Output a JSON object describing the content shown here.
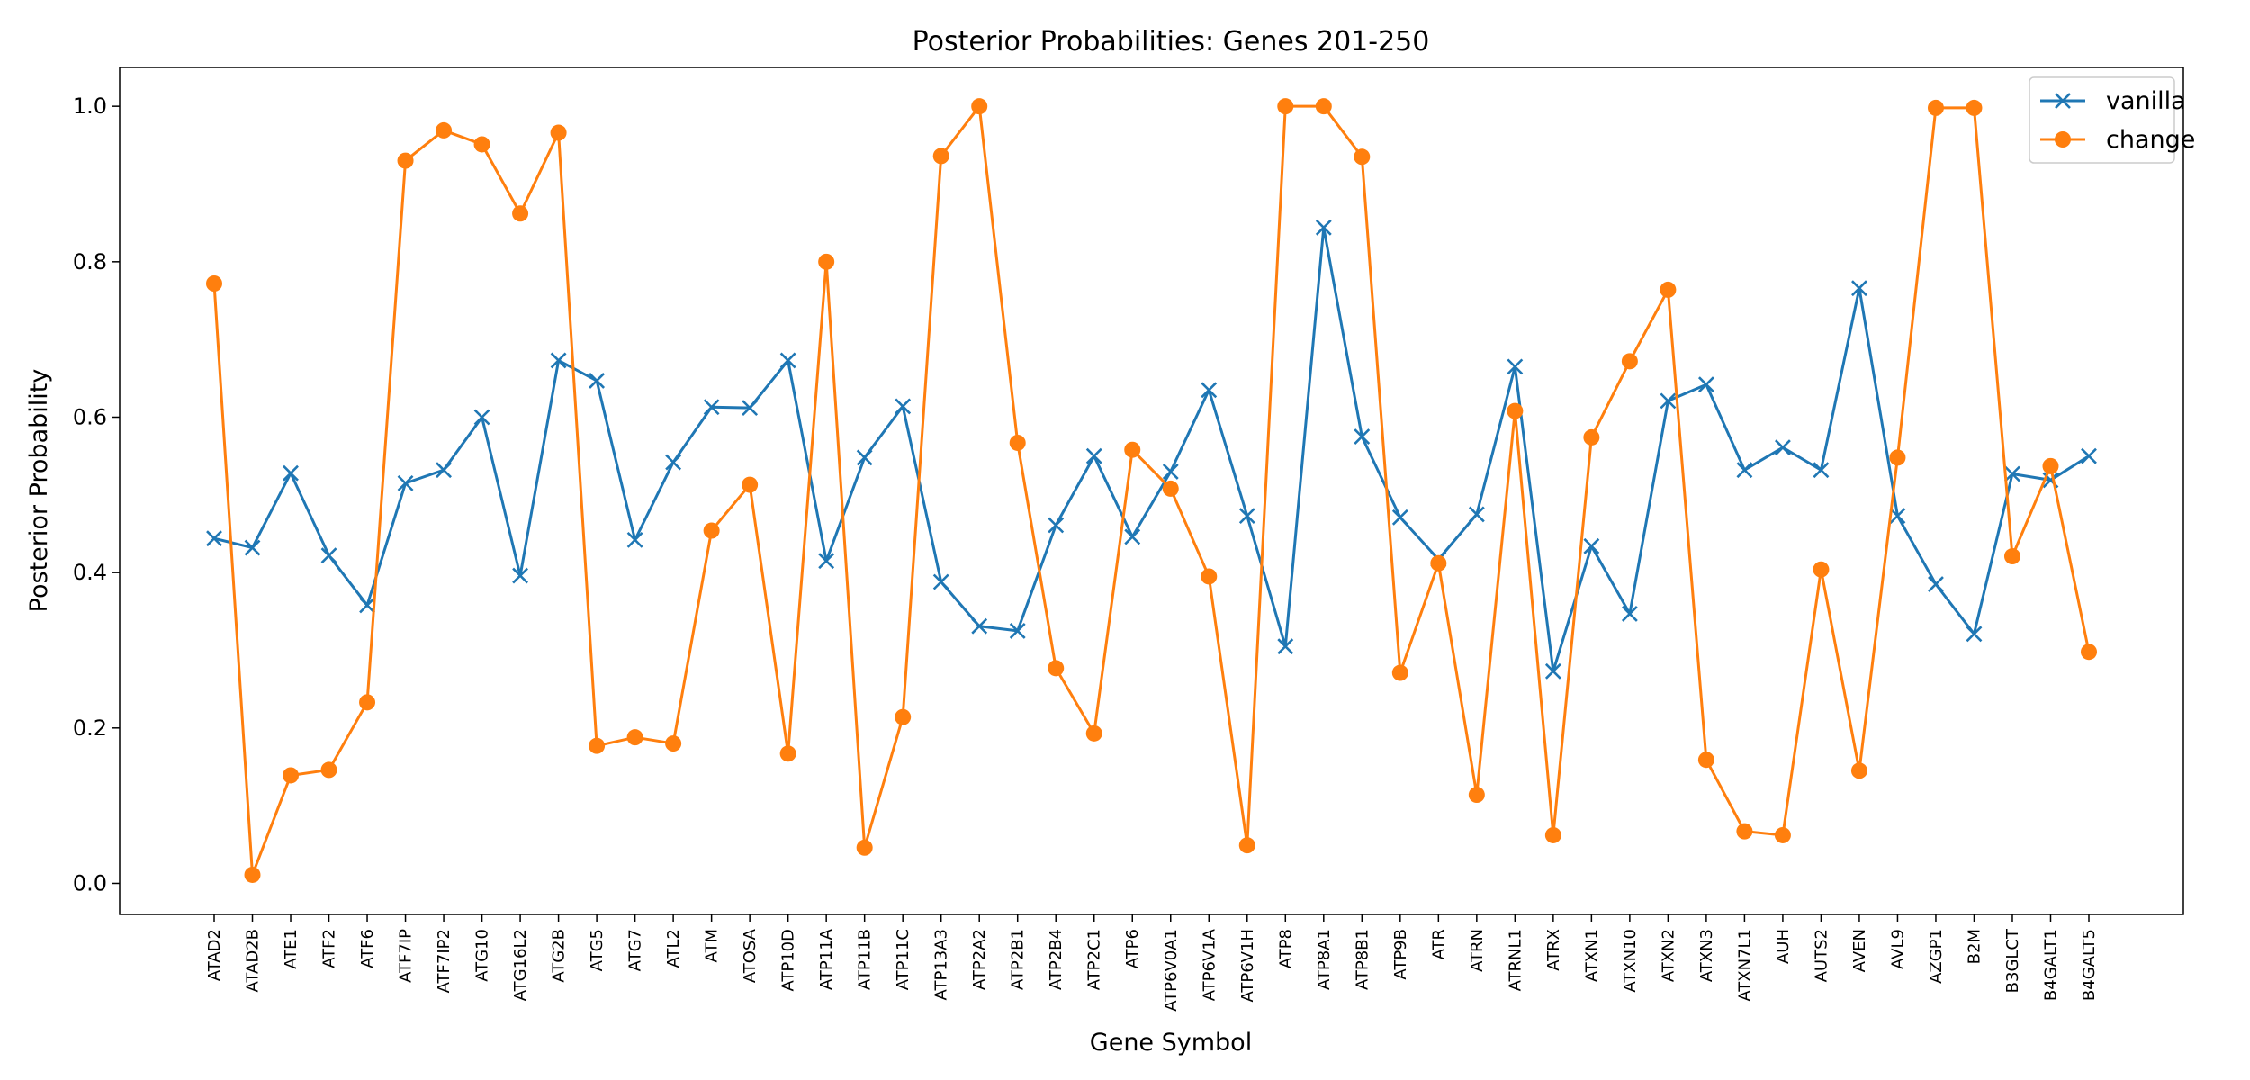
{
  "chart_data": {
    "type": "line",
    "title": "Posterior Probabilities: Genes 201-250",
    "xlabel": "Gene Symbol",
    "ylabel": "Posterior Probability",
    "ylim": [
      -0.04,
      1.05
    ],
    "yticks": [
      "0.0",
      "0.2",
      "0.4",
      "0.6",
      "0.8",
      "1.0"
    ],
    "grid": false,
    "legend_position": "top-right",
    "categories": [
      "ATAD2",
      "ATAD2B",
      "ATE1",
      "ATF2",
      "ATF6",
      "ATF7IP",
      "ATF7IP2",
      "ATG10",
      "ATG16L2",
      "ATG2B",
      "ATG5",
      "ATG7",
      "ATL2",
      "ATM",
      "ATOSA",
      "ATP10D",
      "ATP11A",
      "ATP11B",
      "ATP11C",
      "ATP13A3",
      "ATP2A2",
      "ATP2B1",
      "ATP2B4",
      "ATP2C1",
      "ATP6",
      "ATP6V0A1",
      "ATP6V1A",
      "ATP6V1H",
      "ATP8",
      "ATP8A1",
      "ATP8B1",
      "ATP9B",
      "ATR",
      "ATRN",
      "ATRNL1",
      "ATRX",
      "ATXN1",
      "ATXN10",
      "ATXN2",
      "ATXN3",
      "ATXN7L1",
      "AUH",
      "AUTS2",
      "AVEN",
      "AVL9",
      "AZGP1",
      "B2M",
      "B3GLCT",
      "B4GALT1",
      "B4GALT5"
    ],
    "series": [
      {
        "name": "vanilla",
        "color": "#1f77b4",
        "marker": "x",
        "values": [
          0.444,
          0.432,
          0.528,
          0.422,
          0.358,
          0.515,
          0.532,
          0.6,
          0.396,
          0.673,
          0.647,
          0.442,
          0.542,
          0.613,
          0.612,
          0.673,
          0.415,
          0.548,
          0.614,
          0.388,
          0.331,
          0.325,
          0.461,
          0.55,
          0.446,
          0.53,
          0.635,
          0.473,
          0.305,
          0.844,
          0.575,
          0.471,
          0.417,
          0.475,
          0.665,
          0.273,
          0.434,
          0.347,
          0.621,
          0.642,
          0.532,
          0.561,
          0.532,
          0.766,
          0.473,
          0.385,
          0.321,
          0.527,
          0.519,
          0.55
        ]
      },
      {
        "name": "change",
        "color": "#ff7f0e",
        "marker": "circle",
        "values": [
          0.772,
          0.011,
          0.139,
          0.146,
          0.233,
          0.93,
          0.969,
          0.951,
          0.862,
          0.966,
          0.177,
          0.188,
          0.18,
          0.454,
          0.513,
          0.167,
          0.8,
          0.046,
          0.214,
          0.936,
          1.0,
          0.567,
          0.277,
          0.193,
          0.558,
          0.508,
          0.395,
          0.049,
          1.0,
          1.0,
          0.935,
          0.271,
          0.412,
          0.114,
          0.608,
          0.062,
          0.574,
          0.672,
          0.764,
          0.159,
          0.067,
          0.062,
          0.404,
          0.145,
          0.548,
          0.998,
          0.998,
          0.421,
          0.537,
          0.298
        ]
      }
    ]
  }
}
